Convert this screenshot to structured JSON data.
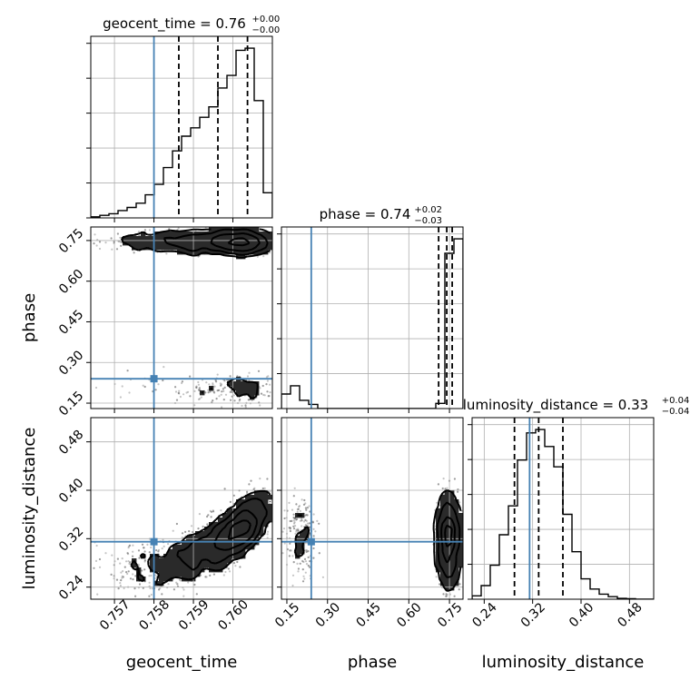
{
  "chart_data": {
    "type": "corner",
    "colors": {
      "truth": "#4682b4",
      "hist": "#000000",
      "scatter": "#555555",
      "grid": "#b0b0b0"
    },
    "parameters": [
      {
        "key": "geocent_time",
        "label": "geocent_time",
        "title_main": "geocent_time = 0.76",
        "title_plus": "+0.00",
        "title_minus": "−0.00",
        "range": [
          0.7564,
          0.761
        ],
        "ticks": [
          0.757,
          0.758,
          0.759,
          0.76
        ],
        "tick_labels": [
          "0.757",
          "0.758",
          "0.759",
          "0.760"
        ],
        "truth": 0.758,
        "quantiles": [
          0.75863,
          0.75962,
          0.76037
        ],
        "hist_edges_start": 0.7564,
        "hist_bin_width": 0.00023,
        "hist_counts": [
          0.5,
          1.2,
          2,
          3.5,
          5,
          7,
          11,
          16,
          24,
          32,
          39,
          43,
          48,
          53,
          62,
          68,
          80,
          81,
          56,
          12
        ]
      },
      {
        "key": "phase",
        "label": "phase",
        "title_main": "phase = 0.74",
        "title_plus": "+0.02",
        "title_minus": "−0.03",
        "range": [
          0.13,
          0.8
        ],
        "ticks": [
          0.15,
          0.3,
          0.45,
          0.6,
          0.75
        ],
        "tick_labels": [
          "0.15",
          "0.30",
          "0.45",
          "0.60",
          "0.75"
        ],
        "truth": 0.24,
        "quantiles": [
          0.71,
          0.74,
          0.76
        ],
        "hist_edges_start": 0.13,
        "hist_bin_width": 0.0335,
        "hist_counts": [
          7,
          11,
          4,
          2,
          0,
          0,
          0,
          0,
          0,
          0,
          0,
          0,
          0,
          0,
          0,
          0,
          0,
          2.5,
          75,
          82
        ]
      },
      {
        "key": "luminosity_distance",
        "label": "luminosity_distance",
        "title_main": "luminosity_distance = 0.33",
        "title_plus": "+0.04",
        "title_minus": "−0.04",
        "range": [
          0.22,
          0.52
        ],
        "ticks": [
          0.24,
          0.32,
          0.4,
          0.48
        ],
        "tick_labels": [
          "0.24",
          "0.32",
          "0.40",
          "0.48"
        ],
        "truth": 0.315,
        "quantiles": [
          0.29,
          0.33,
          0.37
        ],
        "hist_edges_start": 0.22,
        "hist_bin_width": 0.015,
        "hist_counts": [
          2,
          8,
          20,
          38,
          55,
          82,
          98,
          100,
          90,
          78,
          50,
          28,
          12,
          6,
          3,
          1.5,
          0.5,
          0.3,
          0,
          0
        ]
      }
    ],
    "contour_levels": [
      0.118,
      0.393,
      0.675,
      0.864
    ]
  }
}
